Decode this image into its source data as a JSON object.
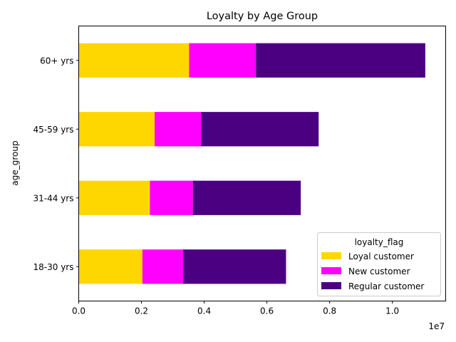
{
  "chart_data": {
    "type": "bar",
    "orientation": "horizontal",
    "stacked": true,
    "title": "Loyalty by Age Group",
    "xlabel": "",
    "ylabel": "age_group",
    "x_offset_label": "1e7",
    "categories": [
      "18-30 yrs",
      "31-44 yrs",
      "45-59 yrs",
      "60+ yrs"
    ],
    "series": [
      {
        "name": "Loyal customer",
        "color": "#ffd700",
        "values": [
          2030000,
          2270000,
          2420000,
          3520000
        ]
      },
      {
        "name": "New customer",
        "color": "#ff00ff",
        "values": [
          1300000,
          1370000,
          1480000,
          2130000
        ]
      },
      {
        "name": "Regular customer",
        "color": "#4b0082",
        "values": [
          3280000,
          3440000,
          3750000,
          5400000
        ]
      }
    ],
    "xlim": [
      0,
      11700000
    ],
    "xticks": [
      0,
      2000000,
      4000000,
      6000000,
      8000000,
      10000000
    ],
    "xtick_labels": [
      "0.0",
      "0.2",
      "0.4",
      "0.6",
      "0.8",
      "1.0"
    ],
    "legend": {
      "title": "loyalty_flag",
      "placement": "lower right"
    },
    "grid": false
  }
}
